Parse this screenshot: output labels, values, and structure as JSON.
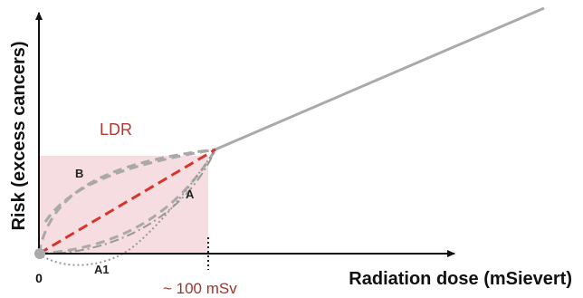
{
  "axes": {
    "y_label": "Risk (excess cancers)",
    "x_label": "Radiation dose (mSievert)"
  },
  "labels": {
    "region": "LDR",
    "origin": "0",
    "threshold": "~ 100 mSv",
    "curve_b": "B",
    "curve_a": "A",
    "curve_a1": "A1"
  }
}
